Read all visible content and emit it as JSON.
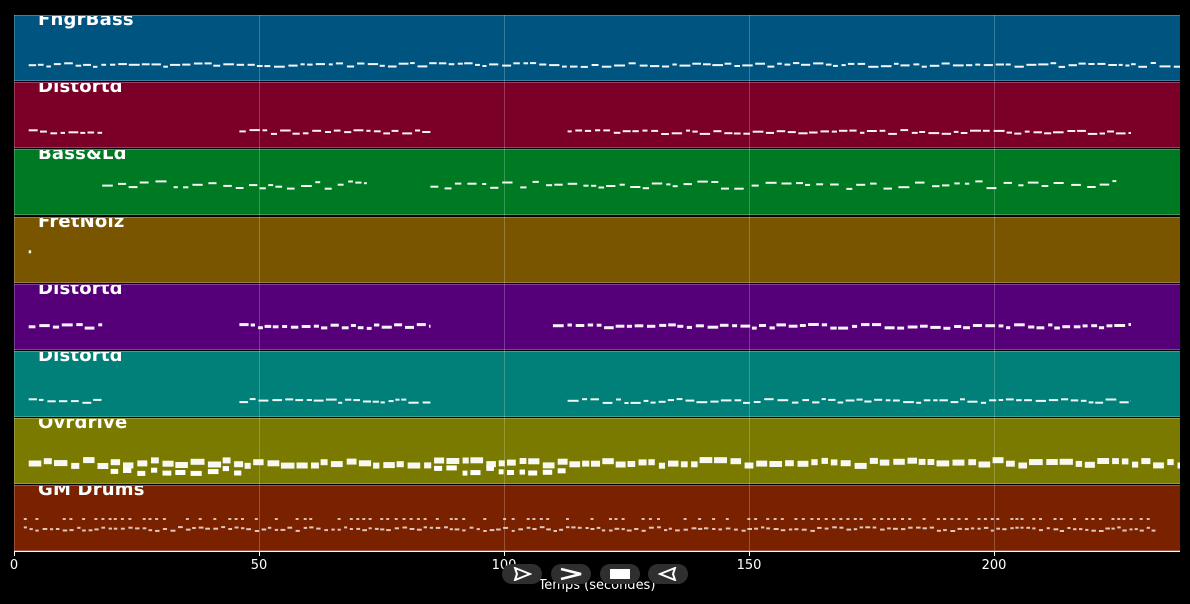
{
  "tracks": [
    {
      "name": "FngrBass",
      "color": "#005580",
      "style": "dash",
      "segments": [
        [
          3,
          240
        ]
      ]
    },
    {
      "name": "Distortd",
      "color": "#7a0028",
      "style": "dash",
      "segments": [
        [
          3,
          18
        ],
        [
          46,
          85
        ],
        [
          113,
          228
        ]
      ]
    },
    {
      "name": "Bass&Ld",
      "color": "#007a22",
      "style": "scatter",
      "segments": [
        [
          18,
          72
        ],
        [
          85,
          225
        ]
      ]
    },
    {
      "name": "FretNoiz",
      "color": "#7a5500",
      "style": "dot",
      "segments": [
        [
          3,
          3.5
        ]
      ]
    },
    {
      "name": "Distortd",
      "color": "#550078",
      "style": "thick",
      "segments": [
        [
          3,
          18
        ],
        [
          46,
          85
        ],
        [
          110,
          228
        ]
      ]
    },
    {
      "name": "Distortd",
      "color": "#008078",
      "style": "dash",
      "segments": [
        [
          3,
          18
        ],
        [
          46,
          85
        ],
        [
          113,
          228
        ]
      ]
    },
    {
      "name": "Ovrdrive",
      "color": "#7a7a00",
      "style": "heavy",
      "segments": [
        [
          3,
          240
        ]
      ]
    },
    {
      "name": "GM Drums",
      "color": "#7a2200",
      "style": "drums",
      "segments": [
        [
          2,
          233
        ]
      ]
    }
  ],
  "axis": {
    "xlabel": "Temps (secondes)",
    "xlim": [
      0,
      238
    ],
    "ticks": [
      0,
      50,
      100,
      150,
      200
    ],
    "tick_labels": [
      "0",
      "50",
      "100",
      "150",
      "200"
    ]
  },
  "transport": [
    {
      "name": "play-icon",
      "label": "play"
    },
    {
      "name": "fast-forward-icon",
      "label": "forward"
    },
    {
      "name": "stop-icon",
      "label": "stop"
    },
    {
      "name": "rewind-icon",
      "label": "back"
    }
  ]
}
